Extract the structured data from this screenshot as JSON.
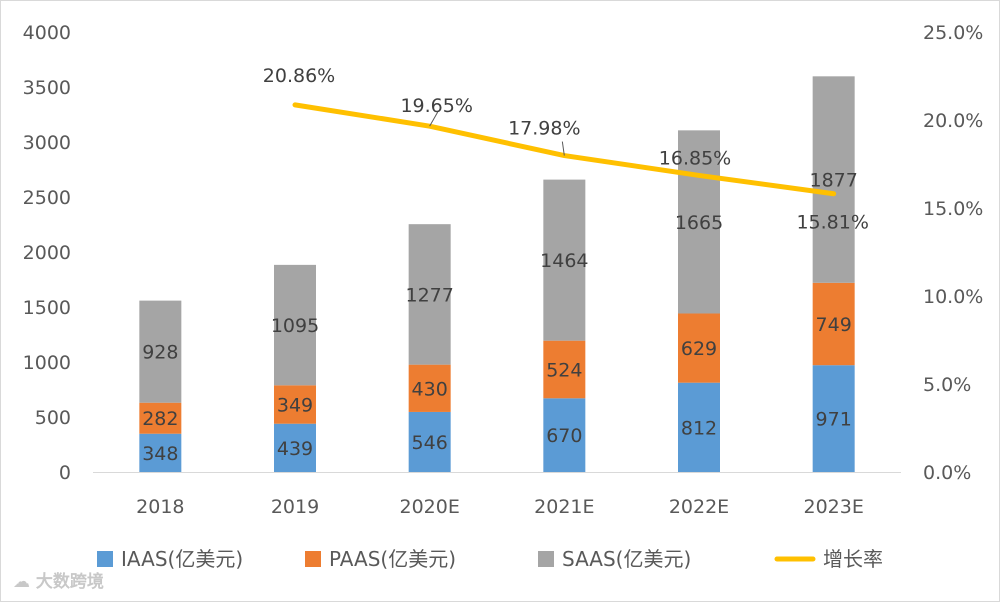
{
  "chart_data": {
    "type": "bar",
    "stacked": true,
    "categories": [
      "2018",
      "2019",
      "2020E",
      "2021E",
      "2022E",
      "2023E"
    ],
    "series": [
      {
        "name": "IAAS(亿美元)",
        "color": "#5b9bd5",
        "values": [
          348,
          439,
          546,
          670,
          812,
          971
        ]
      },
      {
        "name": "PAAS(亿美元)",
        "color": "#ed7d31",
        "values": [
          282,
          349,
          430,
          524,
          629,
          749
        ]
      },
      {
        "name": "SAAS(亿美元)",
        "color": "#a5a5a5",
        "values": [
          928,
          1095,
          1277,
          1464,
          1665,
          1877
        ]
      }
    ],
    "line_series": {
      "name": "增长率",
      "color": "#ffc000",
      "axis": "secondary",
      "values": [
        null,
        20.86,
        19.65,
        17.98,
        16.85,
        15.81
      ],
      "labels": [
        "",
        "20.86%",
        "19.65%",
        "17.98%",
        "16.85%",
        "15.81%"
      ]
    },
    "y_left": {
      "min": 0,
      "max": 4000,
      "ticks": [
        "0",
        "500",
        "1000",
        "1500",
        "2000",
        "2500",
        "3000",
        "3500",
        "4000"
      ]
    },
    "y_right": {
      "min": 0,
      "max": 25,
      "ticks": [
        "0.0%",
        "5.0%",
        "10.0%",
        "15.0%",
        "20.0%",
        "25.0%"
      ]
    },
    "legend": [
      "IAAS(亿美元)",
      "PAAS(亿美元)",
      "SAAS(亿美元)",
      "增长率"
    ],
    "legend_position": "bottom",
    "gridlines": false
  },
  "watermark": "大数跨境"
}
